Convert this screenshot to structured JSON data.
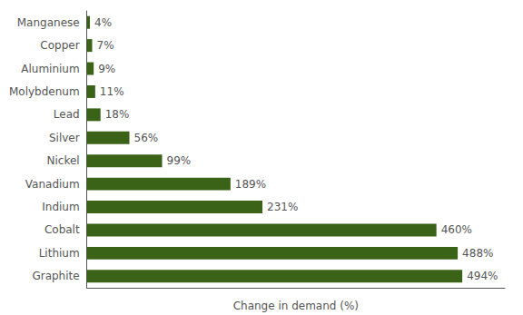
{
  "chart_data": {
    "type": "bar",
    "orientation": "horizontal",
    "categories": [
      "Manganese",
      "Copper",
      "Aluminium",
      "Molybdenum",
      "Lead",
      "Silver",
      "Nickel",
      "Vanadium",
      "Indium",
      "Cobalt",
      "Lithium",
      "Graphite"
    ],
    "values": [
      4,
      7,
      9,
      11,
      18,
      56,
      99,
      189,
      231,
      460,
      488,
      494
    ],
    "value_labels": [
      "4%",
      "7%",
      "9%",
      "11%",
      "18%",
      "56%",
      "99%",
      "189%",
      "231%",
      "460%",
      "488%",
      "494%"
    ],
    "data_labels": true,
    "color": "#3a6318",
    "xlabel": "Change in demand (%)",
    "xlim": [
      0,
      550
    ],
    "tick_labels": "y",
    "grid": false
  }
}
